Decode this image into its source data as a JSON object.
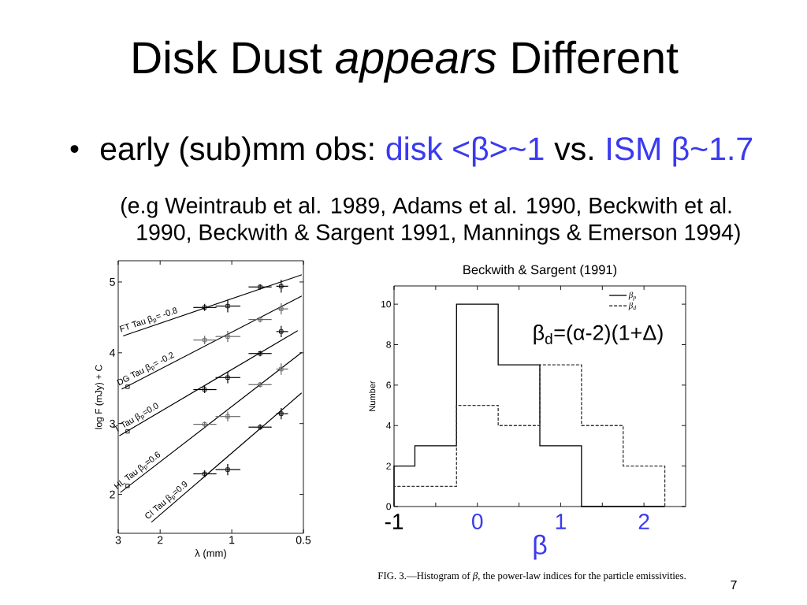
{
  "chart_data": [
    {
      "type": "other",
      "title": "Disk Dust *appears* Different",
      "annotations": [
        "•",
        "early (sub)mm obs:",
        "disk <β>~1",
        "vs.",
        "ISM β~1.7",
        "(e.g Weintraub et al. 1989, Adams et al. 1990, Beckwith et al. 1990, Beckwith & Sargent 1991, Mannings & Emerson 1994)",
        "7"
      ]
    },
    {
      "type": "line",
      "xlabel": "λ (mm)",
      "ylabel": "log F (mJy) + C",
      "log": "x",
      "xlim": [
        3,
        0.5
      ],
      "ylim": [
        1.45,
        5.3
      ],
      "xticks": [
        3,
        2,
        1,
        0.5
      ],
      "yticks": [
        2,
        3,
        4,
        5
      ],
      "series": [
        {
          "name": "FT Tau β$_{p}$= -0.8",
          "type": "line",
          "color": "#000000",
          "x": [
            2.85,
            0.51
          ],
          "values": [
            4.24,
            5.1
          ]
        },
        {
          "type": "scatter",
          "marker": "square",
          "color": "#000000",
          "x": [
            1.3,
            1.04,
            0.76,
            0.62
          ],
          "values": [
            4.64,
            4.66,
            4.93,
            4.94
          ],
          "errors": [
            0.05,
            0.09,
            0.04,
            0.09
          ],
          "xerrors": [
            [
              1.16,
              1.45
            ],
            [
              0.92,
              1.17
            ],
            [
              0.68,
              0.85
            ],
            [
              0.58,
              0.65
            ]
          ]
        },
        {
          "name": "DG Tau β$_{p}$= -0.2",
          "type": "line",
          "color": "#000000",
          "x": [
            2.89,
            0.51
          ],
          "values": [
            3.49,
            4.8
          ]
        },
        {
          "type": "scatter",
          "marker": "square",
          "color": "#666666",
          "x": [
            1.3,
            1.04,
            0.76,
            0.62
          ],
          "values": [
            4.18,
            4.23,
            4.47,
            4.62
          ],
          "errors": [
            0.06,
            0.08,
            0.04,
            0.08
          ],
          "xerrors": [
            [
              1.16,
              1.45
            ],
            [
              0.92,
              1.17
            ],
            [
              0.68,
              0.85
            ],
            [
              0.58,
              0.65
            ]
          ]
        },
        {
          "name": "T Tau β$_{p}$=0.0",
          "type": "line",
          "color": "#000000",
          "x": [
            2.96,
            0.53
          ],
          "values": [
            2.83,
            4.31
          ]
        },
        {
          "type": "scatter",
          "marker": "square",
          "color": "#000000",
          "x": [
            1.3,
            1.04,
            0.76,
            0.62
          ],
          "values": [
            3.48,
            3.65,
            3.99,
            4.3
          ],
          "errors": [
            0.05,
            0.08,
            0.04,
            0.08
          ],
          "xerrors": [
            [
              1.16,
              1.45
            ],
            [
              0.92,
              1.17
            ],
            [
              0.68,
              0.85
            ],
            [
              0.58,
              0.65
            ]
          ]
        },
        {
          "name": "HL Tau β$_{p}$=0.6",
          "type": "line",
          "color": "#000000",
          "x": [
            2.93,
            0.51
          ],
          "values": [
            2.03,
            4.0
          ]
        },
        {
          "type": "scatter",
          "marker": "square",
          "color": "#666666",
          "x": [
            1.3,
            1.04,
            0.76,
            0.62
          ],
          "values": [
            2.99,
            3.1,
            3.55,
            3.77
          ],
          "errors": [
            0.04,
            0.07,
            0.04,
            0.08
          ],
          "xerrors": [
            [
              1.16,
              1.45
            ],
            [
              0.92,
              1.17
            ],
            [
              0.68,
              0.85
            ],
            [
              0.58,
              0.65
            ]
          ]
        },
        {
          "name": "CI Tau β$_{p}$=0.9",
          "type": "line",
          "color": "#000000",
          "x": [
            2.17,
            0.51
          ],
          "values": [
            1.61,
            3.43
          ]
        },
        {
          "type": "scatter",
          "marker": "square",
          "color": "#000000",
          "x": [
            1.3,
            1.04,
            0.76,
            0.62
          ],
          "values": [
            2.29,
            2.35,
            2.95,
            3.14
          ],
          "errors": [
            0.05,
            0.08,
            0.04,
            0.08
          ],
          "xerrors": [
            [
              1.16,
              1.45
            ],
            [
              0.92,
              1.17
            ],
            [
              0.68,
              0.85
            ],
            [
              0.58,
              0.65
            ]
          ]
        },
        {
          "type": "scatter",
          "marker": "square",
          "color": "#000000",
          "x": [
            2.74,
            2.74,
            2.74
          ],
          "values": [
            3.52,
            2.89,
            2.12
          ]
        }
      ]
    },
    {
      "type": "histogram",
      "title": "Beckwith & Sargent (1991)",
      "xlabel": "β",
      "ylabel": "Number",
      "bins": [
        -1,
        -0.75,
        -0.25,
        0.25,
        0.75,
        1.25,
        1.75,
        2.25
      ],
      "xlim": [
        -1,
        2.5
      ],
      "ylim": [
        0,
        10.9
      ],
      "xticks": [
        -1,
        {
          "value": -0.5,
          "label": null
        },
        0,
        {
          "value": 0.5,
          "label": null
        },
        1,
        {
          "value": 1.5,
          "label": null
        },
        2
      ],
      "yticks": [
        0,
        2,
        4,
        6,
        8,
        10
      ],
      "legend": "top right",
      "series": [
        {
          "name": "β$_{p}$",
          "color": "#000000",
          "line_style": "solid",
          "values": [
            2,
            3,
            10,
            7,
            3,
            0,
            0
          ]
        },
        {
          "name": "β$_{d}$",
          "color": "#333333",
          "line_style": "dashed",
          "values": [
            1,
            1,
            5,
            4,
            7,
            4,
            2
          ]
        }
      ],
      "annotations": [
        "β$_{d}$=(α-2)(1+Δ)",
        "FIG. 3.—Histogram of *β*, the power-law indices for the particle emissivities."
      ]
    }
  ]
}
